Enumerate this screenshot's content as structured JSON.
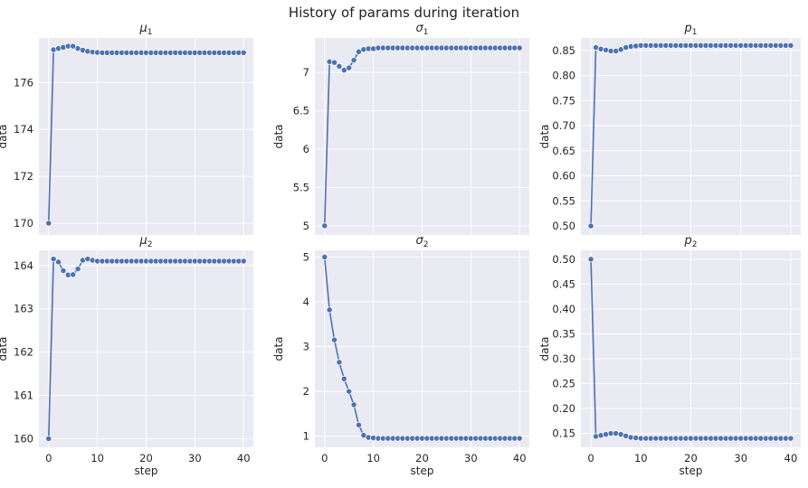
{
  "figure": {
    "title": "History of params during iteration"
  },
  "chart_data": [
    {
      "type": "line",
      "title_base": "μ",
      "title_sub": "1",
      "xlabel": "",
      "ylabel": "data",
      "xlim": [
        -2,
        42
      ],
      "ylim": [
        169.5,
        177.9
      ],
      "xticks": [
        0,
        10,
        20,
        30,
        40
      ],
      "show_xticklabels": false,
      "yticks": [
        170,
        172,
        174,
        176
      ],
      "grid": true,
      "marker": "circle",
      "x": [
        0,
        1,
        2,
        3,
        4,
        5,
        6,
        7,
        8,
        9,
        10,
        11,
        12,
        13,
        14,
        15,
        16,
        17,
        18,
        19,
        20,
        21,
        22,
        23,
        24,
        25,
        26,
        27,
        28,
        29,
        30,
        31,
        32,
        33,
        34,
        35,
        36,
        37,
        38,
        39,
        40
      ],
      "y": [
        170.0,
        177.4,
        177.45,
        177.5,
        177.55,
        177.55,
        177.45,
        177.38,
        177.33,
        177.3,
        177.28,
        177.27,
        177.27,
        177.27,
        177.27,
        177.27,
        177.27,
        177.27,
        177.27,
        177.27,
        177.27,
        177.27,
        177.27,
        177.27,
        177.27,
        177.27,
        177.27,
        177.27,
        177.27,
        177.27,
        177.27,
        177.27,
        177.27,
        177.27,
        177.27,
        177.27,
        177.27,
        177.27,
        177.27,
        177.27,
        177.27
      ]
    },
    {
      "type": "line",
      "title_base": "σ",
      "title_sub": "1",
      "xlabel": "",
      "ylabel": "data",
      "xlim": [
        -2,
        42
      ],
      "ylim": [
        4.88,
        7.45
      ],
      "xticks": [
        0,
        10,
        20,
        30,
        40
      ],
      "show_xticklabels": false,
      "yticks": [
        5.0,
        5.5,
        6.0,
        6.5,
        7.0
      ],
      "grid": true,
      "marker": "circle",
      "x": [
        0,
        1,
        2,
        3,
        4,
        5,
        6,
        7,
        8,
        9,
        10,
        11,
        12,
        13,
        14,
        15,
        16,
        17,
        18,
        19,
        20,
        21,
        22,
        23,
        24,
        25,
        26,
        27,
        28,
        29,
        30,
        31,
        32,
        33,
        34,
        35,
        36,
        37,
        38,
        39,
        40
      ],
      "y": [
        5.0,
        7.14,
        7.13,
        7.08,
        7.03,
        7.06,
        7.16,
        7.27,
        7.3,
        7.31,
        7.31,
        7.32,
        7.32,
        7.32,
        7.32,
        7.32,
        7.32,
        7.32,
        7.32,
        7.32,
        7.32,
        7.32,
        7.32,
        7.32,
        7.32,
        7.32,
        7.32,
        7.32,
        7.32,
        7.32,
        7.32,
        7.32,
        7.32,
        7.32,
        7.32,
        7.32,
        7.32,
        7.32,
        7.32,
        7.32,
        7.32
      ]
    },
    {
      "type": "line",
      "title_base": "p",
      "title_sub": "1",
      "xlabel": "",
      "ylabel": "data",
      "xlim": [
        -2,
        42
      ],
      "ylim": [
        0.482,
        0.875
      ],
      "xticks": [
        0,
        10,
        20,
        30,
        40
      ],
      "show_xticklabels": false,
      "yticks": [
        0.5,
        0.55,
        0.6,
        0.65,
        0.7,
        0.75,
        0.8,
        0.85
      ],
      "ytick_labels": [
        "0.50",
        "0.55",
        "0.60",
        "0.65",
        "0.70",
        "0.75",
        "0.80",
        "0.85"
      ],
      "grid": true,
      "marker": "circle",
      "x": [
        0,
        1,
        2,
        3,
        4,
        5,
        6,
        7,
        8,
        9,
        10,
        11,
        12,
        13,
        14,
        15,
        16,
        17,
        18,
        19,
        20,
        21,
        22,
        23,
        24,
        25,
        26,
        27,
        28,
        29,
        30,
        31,
        32,
        33,
        34,
        35,
        36,
        37,
        38,
        39,
        40
      ],
      "y": [
        0.5,
        0.856,
        0.853,
        0.851,
        0.849,
        0.849,
        0.852,
        0.856,
        0.858,
        0.859,
        0.86,
        0.86,
        0.86,
        0.86,
        0.86,
        0.86,
        0.86,
        0.86,
        0.86,
        0.86,
        0.86,
        0.86,
        0.86,
        0.86,
        0.86,
        0.86,
        0.86,
        0.86,
        0.86,
        0.86,
        0.86,
        0.86,
        0.86,
        0.86,
        0.86,
        0.86,
        0.86,
        0.86,
        0.86,
        0.86,
        0.86
      ]
    },
    {
      "type": "line",
      "title_base": "μ",
      "title_sub": "2",
      "xlabel": "step",
      "ylabel": "data",
      "xlim": [
        -2,
        42
      ],
      "ylim": [
        159.8,
        164.35
      ],
      "xticks": [
        0,
        10,
        20,
        30,
        40
      ],
      "show_xticklabels": true,
      "yticks": [
        160,
        161,
        162,
        163,
        164
      ],
      "grid": true,
      "marker": "circle",
      "x": [
        0,
        1,
        2,
        3,
        4,
        5,
        6,
        7,
        8,
        9,
        10,
        11,
        12,
        13,
        14,
        15,
        16,
        17,
        18,
        19,
        20,
        21,
        22,
        23,
        24,
        25,
        26,
        27,
        28,
        29,
        30,
        31,
        32,
        33,
        34,
        35,
        36,
        37,
        38,
        39,
        40
      ],
      "y": [
        160.0,
        164.15,
        164.08,
        163.88,
        163.78,
        163.79,
        163.92,
        164.12,
        164.15,
        164.12,
        164.1,
        164.1,
        164.1,
        164.1,
        164.1,
        164.1,
        164.1,
        164.1,
        164.1,
        164.1,
        164.1,
        164.1,
        164.1,
        164.1,
        164.1,
        164.1,
        164.1,
        164.1,
        164.1,
        164.1,
        164.1,
        164.1,
        164.1,
        164.1,
        164.1,
        164.1,
        164.1,
        164.1,
        164.1,
        164.1,
        164.1
      ]
    },
    {
      "type": "line",
      "title_base": "σ",
      "title_sub": "2",
      "xlabel": "step",
      "ylabel": "data",
      "xlim": [
        -2,
        42
      ],
      "ylim": [
        0.75,
        5.15
      ],
      "xticks": [
        0,
        10,
        20,
        30,
        40
      ],
      "show_xticklabels": true,
      "yticks": [
        1,
        2,
        3,
        4,
        5
      ],
      "grid": true,
      "marker": "circle",
      "x": [
        0,
        1,
        2,
        3,
        4,
        5,
        6,
        7,
        8,
        9,
        10,
        11,
        12,
        13,
        14,
        15,
        16,
        17,
        18,
        19,
        20,
        21,
        22,
        23,
        24,
        25,
        26,
        27,
        28,
        29,
        30,
        31,
        32,
        33,
        34,
        35,
        36,
        37,
        38,
        39,
        40
      ],
      "y": [
        5.0,
        3.82,
        3.15,
        2.65,
        2.28,
        2.0,
        1.7,
        1.25,
        1.02,
        0.97,
        0.96,
        0.95,
        0.95,
        0.95,
        0.95,
        0.95,
        0.95,
        0.95,
        0.95,
        0.95,
        0.95,
        0.95,
        0.95,
        0.95,
        0.95,
        0.95,
        0.95,
        0.95,
        0.95,
        0.95,
        0.95,
        0.95,
        0.95,
        0.95,
        0.95,
        0.95,
        0.95,
        0.95,
        0.95,
        0.95,
        0.95
      ]
    },
    {
      "type": "line",
      "title_base": "p",
      "title_sub": "2",
      "xlabel": "step",
      "ylabel": "data",
      "xlim": [
        -2,
        42
      ],
      "ylim": [
        0.122,
        0.518
      ],
      "xticks": [
        0,
        10,
        20,
        30,
        40
      ],
      "show_xticklabels": true,
      "yticks": [
        0.15,
        0.2,
        0.25,
        0.3,
        0.35,
        0.4,
        0.45,
        0.5
      ],
      "ytick_labels": [
        "0.15",
        "0.20",
        "0.25",
        "0.30",
        "0.35",
        "0.40",
        "0.45",
        "0.50"
      ],
      "grid": true,
      "marker": "circle",
      "x": [
        0,
        1,
        2,
        3,
        4,
        5,
        6,
        7,
        8,
        9,
        10,
        11,
        12,
        13,
        14,
        15,
        16,
        17,
        18,
        19,
        20,
        21,
        22,
        23,
        24,
        25,
        26,
        27,
        28,
        29,
        30,
        31,
        32,
        33,
        34,
        35,
        36,
        37,
        38,
        39,
        40
      ],
      "y": [
        0.5,
        0.144,
        0.146,
        0.148,
        0.15,
        0.15,
        0.148,
        0.145,
        0.142,
        0.141,
        0.14,
        0.14,
        0.14,
        0.14,
        0.14,
        0.14,
        0.14,
        0.14,
        0.14,
        0.14,
        0.14,
        0.14,
        0.14,
        0.14,
        0.14,
        0.14,
        0.14,
        0.14,
        0.14,
        0.14,
        0.14,
        0.14,
        0.14,
        0.14,
        0.14,
        0.14,
        0.14,
        0.14,
        0.14,
        0.14,
        0.14
      ]
    }
  ],
  "colors": {
    "line": "#4c72b0",
    "marker_edge": "#ffffff",
    "plot_background": "#eaeaf2",
    "grid": "#ffffff",
    "text": "#262626"
  }
}
